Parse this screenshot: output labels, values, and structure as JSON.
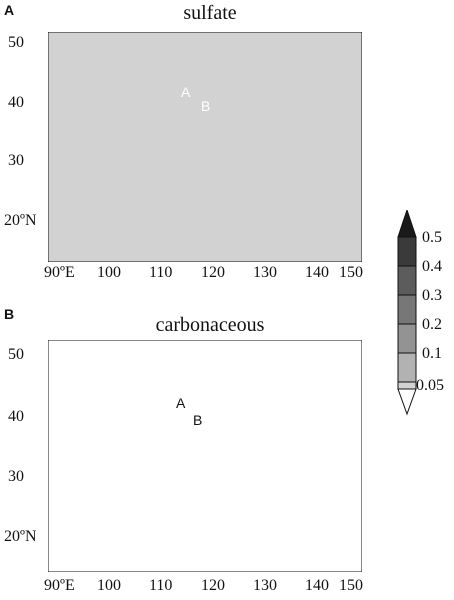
{
  "panel_a": {
    "letter": "A",
    "title": "sulfate",
    "site_a": "A",
    "site_b": "B",
    "y_ticks": [
      "50",
      "40",
      "30",
      "20ºN"
    ],
    "x_ticks": [
      "90ºE",
      "100",
      "110",
      "120",
      "130",
      "140",
      "150"
    ]
  },
  "panel_b": {
    "letter": "B",
    "title": "carbonaceous",
    "site_a": "A",
    "site_b": "B",
    "y_ticks": [
      "50",
      "40",
      "30",
      "20ºN"
    ],
    "x_ticks": [
      "90ºE",
      "100",
      "110",
      "120",
      "130",
      "140",
      "150"
    ]
  },
  "colorbar": {
    "levels": [
      "0.5",
      "0.4",
      "0.3",
      "0.2",
      "0.1",
      "0.05"
    ],
    "shades": [
      "#3a3a3a",
      "#5c5c5c",
      "#777777",
      "#939393",
      "#b2b2b2",
      "#d2d2d2"
    ]
  }
}
